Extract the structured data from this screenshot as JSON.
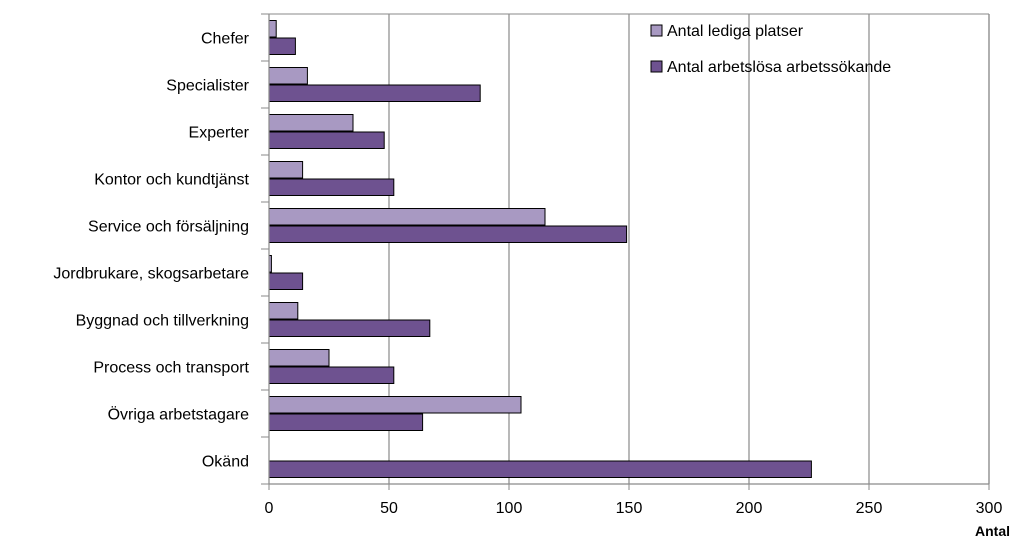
{
  "chart_data": {
    "type": "bar",
    "orientation": "horizontal",
    "categories": [
      "Chefer",
      "Specialister",
      "Experter",
      "Kontor och kundtjänst",
      "Service och försäljning",
      "Jordbrukare, skogsarbetare",
      "Byggnad och tillverkning",
      "Process och transport",
      "Övriga arbetstagare",
      "Okänd"
    ],
    "series": [
      {
        "name": "Antal lediga platser",
        "color": "#a899c2",
        "values": [
          3,
          16,
          35,
          14,
          115,
          1,
          12,
          25,
          105,
          0
        ]
      },
      {
        "name": "Antal arbetslösa arbetssökande",
        "color": "#6e5290",
        "values": [
          11,
          88,
          48,
          52,
          149,
          14,
          67,
          52,
          64,
          226
        ]
      }
    ],
    "xlabel": "Antal",
    "ylabel": "",
    "title": "",
    "xlim": [
      0,
      300
    ],
    "xticks": [
      0,
      50,
      100,
      150,
      200,
      250,
      300
    ],
    "grid": "vertical",
    "legend": "top-right"
  }
}
